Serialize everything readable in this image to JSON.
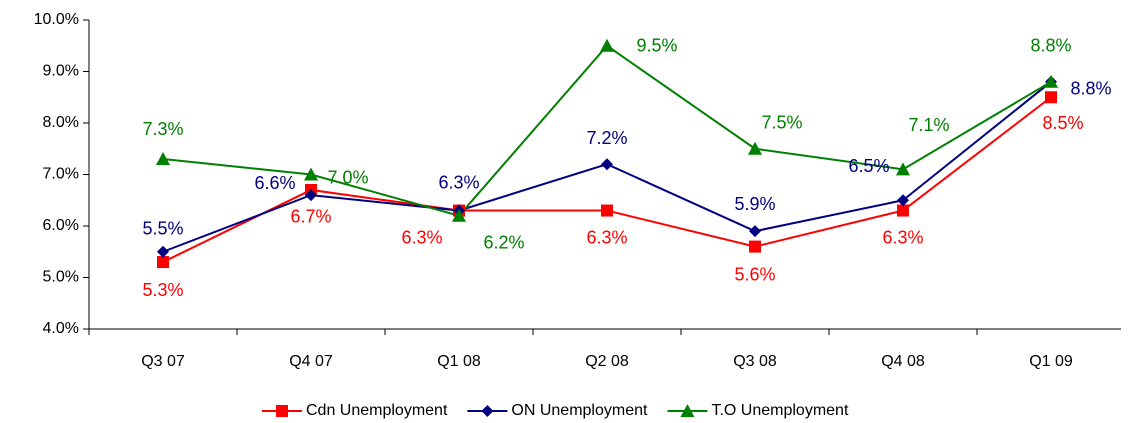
{
  "chart_data": {
    "type": "line",
    "categories": [
      "Q3 07",
      "Q4 07",
      "Q1 08",
      "Q2 08",
      "Q3 08",
      "Q4 08",
      "Q1 09"
    ],
    "series": [
      {
        "name": "Cdn Unemployment",
        "color": "#ff0000",
        "marker": "square",
        "values": [
          5.3,
          6.7,
          6.3,
          6.3,
          5.6,
          6.3,
          8.5
        ],
        "value_labels": [
          "5.3%",
          "6.7%",
          "6.3%",
          "6.3%",
          "5.6%",
          "6.3%",
          "8.5%"
        ]
      },
      {
        "name": "ON Unemployment",
        "color": "#000080",
        "marker": "diamond",
        "values": [
          5.5,
          6.6,
          6.3,
          7.2,
          5.9,
          6.5,
          8.8
        ],
        "value_labels": [
          "5.5%",
          "6.6%",
          "6.3%",
          "7.2%",
          "5.9%",
          "6.5%",
          "8.8%"
        ]
      },
      {
        "name": "T.O Unemployment",
        "color": "#008000",
        "marker": "triangle",
        "values": [
          7.3,
          7.0,
          6.2,
          9.5,
          7.5,
          7.1,
          8.8
        ],
        "value_labels": [
          "7.3%",
          "7.0%",
          "6.2%",
          "9.5%",
          "7.5%",
          "7.1%",
          "8.8%"
        ]
      }
    ],
    "ylim": [
      4,
      10
    ],
    "yticks": [
      {
        "value": 4,
        "label": "4.0%"
      },
      {
        "value": 5,
        "label": "5.0%"
      },
      {
        "value": 6,
        "label": "6.0%"
      },
      {
        "value": 7,
        "label": "7.0%"
      },
      {
        "value": 8,
        "label": "8.0%"
      },
      {
        "value": 9,
        "label": "9.0%"
      },
      {
        "value": 10,
        "label": "10.0%"
      }
    ],
    "grid": false,
    "legend": "bottom"
  }
}
